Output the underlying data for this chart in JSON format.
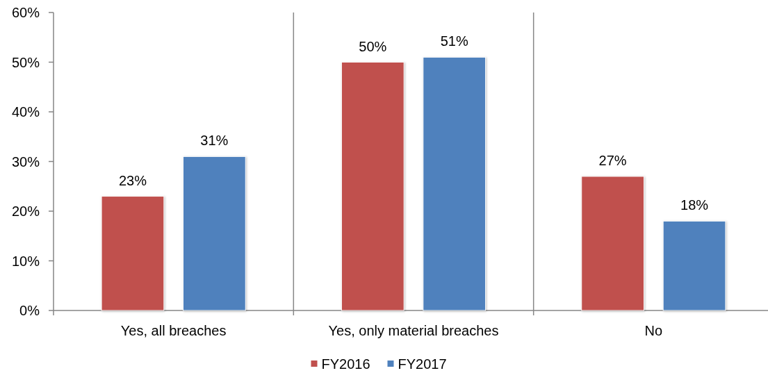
{
  "chart_data": {
    "type": "bar",
    "categories": [
      "Yes, all breaches",
      "Yes, only material breaches",
      "No"
    ],
    "series": [
      {
        "name": "FY2016",
        "color": "#c0504d",
        "values": [
          23,
          50,
          27
        ],
        "value_labels": [
          "23%",
          "50%",
          "27%"
        ]
      },
      {
        "name": "FY2017",
        "color": "#4f81bd",
        "values": [
          31,
          51,
          18
        ],
        "value_labels": [
          "31%",
          "51%",
          "18%"
        ]
      }
    ],
    "ylim": [
      0,
      60
    ],
    "yticks": [
      {
        "value": 0,
        "label": "0%"
      },
      {
        "value": 10,
        "label": "10%"
      },
      {
        "value": 20,
        "label": "20%"
      },
      {
        "value": 30,
        "label": "30%"
      },
      {
        "value": 40,
        "label": "40%"
      },
      {
        "value": 50,
        "label": "50%"
      },
      {
        "value": 60,
        "label": "60%"
      }
    ],
    "grid": "x",
    "legend": "bottom"
  }
}
